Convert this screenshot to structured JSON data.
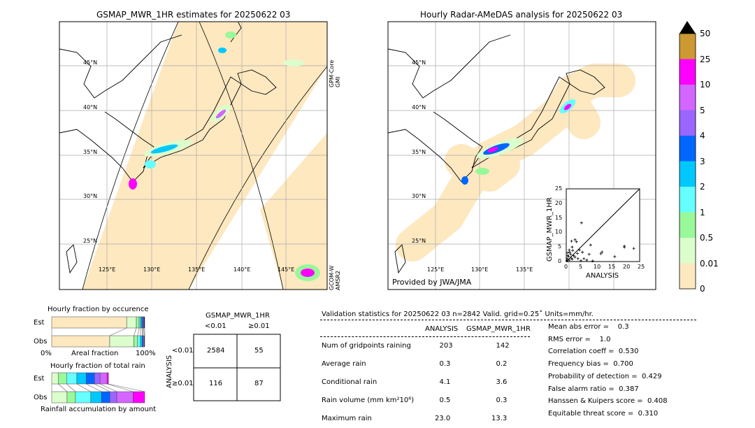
{
  "map_left": {
    "title": "GSMAP_MWR_1HR estimates for 20250622 03",
    "lat_labels": [
      "45°N",
      "40°N",
      "35°N",
      "30°N",
      "25°N"
    ],
    "lon_labels": [
      "125°E",
      "130°E",
      "135°E",
      "140°E",
      "145°E"
    ],
    "sat1": "GPM-Core\nGMI",
    "sat1_a": "GPM-Core",
    "sat1_b": "GMI",
    "sat2_a": "GCOM-W",
    "sat2_b": "AMSR2"
  },
  "map_right": {
    "title": "Hourly Radar-AMeDAS analysis for 20250622 03",
    "lat_labels": [
      "45°N",
      "40°N",
      "35°N",
      "30°N",
      "25°N"
    ],
    "lon_labels": [
      "125°E",
      "130°E",
      "135°E"
    ],
    "credit": "Provided by JWA/JMA"
  },
  "colorbar": {
    "labels": [
      "50",
      "25",
      "10",
      "5",
      "4",
      "3",
      "2",
      "1",
      "0.5",
      "0.01",
      "0"
    ],
    "colors": [
      "#cc9933",
      "#ff00ff",
      "#d366ff",
      "#9966ff",
      "#0066ff",
      "#00c8ff",
      "#66ffff",
      "#99f899",
      "#dcfdcc",
      "#fde8c0"
    ],
    "extend_color": "#000000"
  },
  "chart_data": {
    "type": "scatter",
    "xlabel": "ANALYSIS",
    "ylabel": "GSMAP_MWR_1HR",
    "xlim": [
      0,
      25
    ],
    "ylim": [
      0,
      25
    ],
    "ticks": [
      "0",
      "5",
      "10",
      "15",
      "20",
      "25"
    ],
    "points": [
      [
        5.2,
        13.3
      ],
      [
        3,
        7.5
      ],
      [
        1.8,
        7
      ],
      [
        3.5,
        6.8
      ],
      [
        8.3,
        5.7
      ],
      [
        19.8,
        5.3
      ],
      [
        19.8,
        4.9
      ],
      [
        23,
        4.5
      ],
      [
        12.2,
        3.3
      ],
      [
        11.8,
        2.7
      ],
      [
        16.5,
        1.7
      ],
      [
        7.8,
        2.5
      ],
      [
        5.5,
        3.2
      ],
      [
        4.5,
        4
      ],
      [
        2,
        5
      ],
      [
        1,
        4
      ],
      [
        0.5,
        3
      ],
      [
        1.5,
        2.5
      ],
      [
        2.5,
        2
      ],
      [
        3,
        1.5
      ],
      [
        4,
        1
      ],
      [
        0.3,
        1
      ],
      [
        1,
        0.5
      ],
      [
        2,
        0.8
      ],
      [
        0.2,
        0.2
      ],
      [
        0.8,
        1.8
      ],
      [
        1.2,
        3.2
      ],
      [
        2.2,
        3.8
      ],
      [
        3.8,
        2.8
      ],
      [
        6,
        1
      ],
      [
        7,
        0.5
      ],
      [
        9,
        0.2
      ],
      [
        5,
        0.3
      ],
      [
        0.5,
        2
      ],
      [
        1.7,
        1.2
      ]
    ]
  },
  "occurrence": {
    "title": "Hourly fraction by occurence",
    "est_label": "Est",
    "obs_label": "Obs",
    "x0": "0%",
    "xlabel": "Areal fraction",
    "x1": "100%",
    "est": [
      0.806,
      0.104,
      0.03,
      0.015,
      0.015,
      0.01,
      0.01,
      0.01
    ],
    "obs": [
      0.624,
      0.26,
      0.04,
      0.03,
      0.02,
      0.01,
      0.01,
      0.006
    ]
  },
  "total_rain": {
    "title": "Hourly fraction of total rain",
    "est_label": "Est",
    "obs_label": "Obs",
    "xlabel": "Rainfall accumulation by amount",
    "est": [
      0.07,
      0.09,
      0.11,
      0.1,
      0.09,
      0.06,
      0.075,
      0.015
    ],
    "obs": [
      0.165,
      0.09,
      0.165,
      0.115,
      0.09,
      0.075,
      0.175,
      0.125
    ]
  },
  "contingency": {
    "title": "GSMAP_MWR_1HR",
    "col1": "<0.01",
    "col2": "≥0.01",
    "ylabel": "ANALYSIS",
    "row1": "<0.01",
    "row2": "≥0.01",
    "a": "2584",
    "b": "55",
    "c": "116",
    "d": "87"
  },
  "stats": {
    "header": "Validation statistics for 20250622 03  n=2842 Valid. grid=0.25˚ Units=mm/hr.",
    "col_analysis": "ANALYSIS",
    "col_gsmap": "GSMAP_MWR_1HR",
    "rows": [
      {
        "label": "Num of gridpoints raining",
        "a": "203",
        "g": "142"
      },
      {
        "label": "Average rain",
        "a": "0.3",
        "g": "0.2"
      },
      {
        "label": "Conditional rain",
        "a": "4.1",
        "g": "3.6"
      },
      {
        "label": "Rain volume (mm km²10⁶)",
        "a": "0.5",
        "g": "0.3"
      },
      {
        "label": "Maximum rain",
        "a": "23.0",
        "g": "13.3"
      }
    ],
    "scores": [
      "Mean abs error =    0.3",
      "RMS error =    1.0",
      "Correlation coeff =  0.530",
      "Frequency bias =  0.700",
      "Probability of detection =  0.429",
      "False alarm ratio =  0.387",
      "Hanssen & Kuipers score =  0.408",
      "Equitable threat score =  0.310"
    ]
  }
}
